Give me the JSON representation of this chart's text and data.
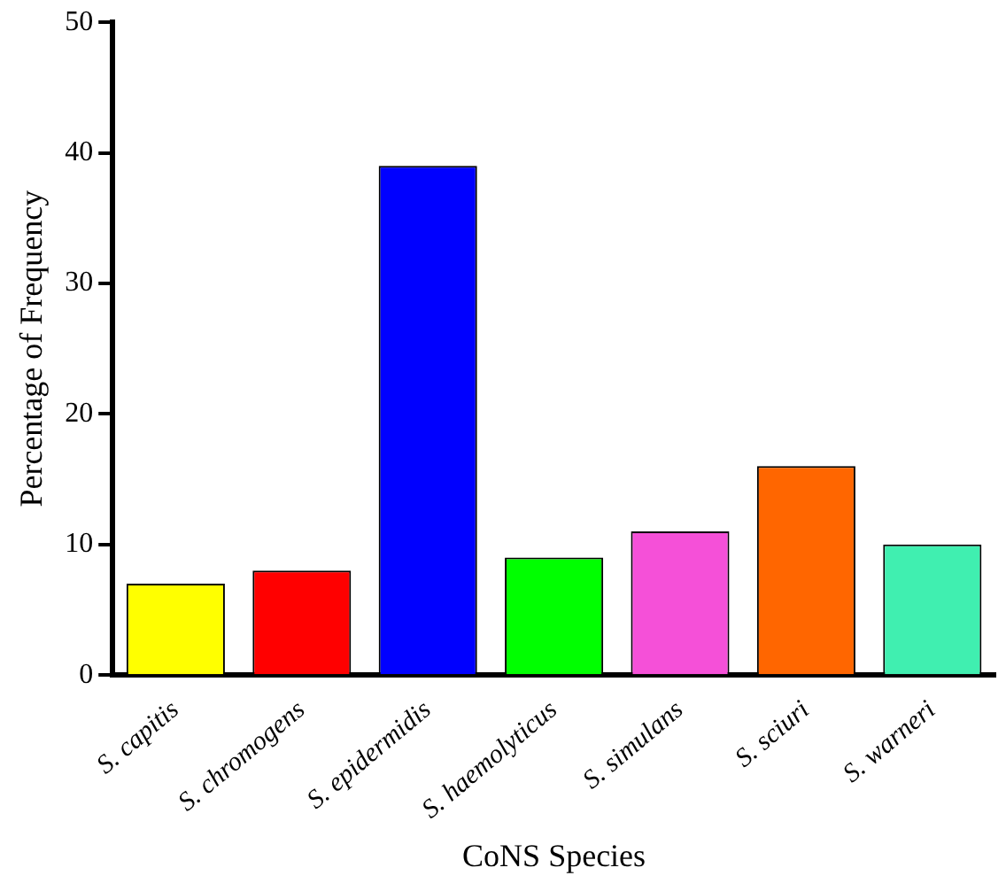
{
  "chart_data": {
    "type": "bar",
    "xlabel": "CoNS Species",
    "ylabel": "Percentage of Frequency",
    "categories": [
      "S. capitis",
      "S. chromogens",
      "S. epidermidis",
      "S. haemolyticus",
      "S. simulans",
      "S. sciuri",
      "S. warneri"
    ],
    "values": [
      7,
      8,
      39,
      9,
      11,
      16,
      10
    ],
    "colors": [
      "#ffff00",
      "#ff0000",
      "#0000ff",
      "#00ff00",
      "#f550d8",
      "#ff6600",
      "#40efb0"
    ],
    "ylim": [
      0,
      50
    ],
    "yticks": [
      0,
      10,
      20,
      30,
      40,
      50
    ],
    "grid": false,
    "legend": false
  }
}
